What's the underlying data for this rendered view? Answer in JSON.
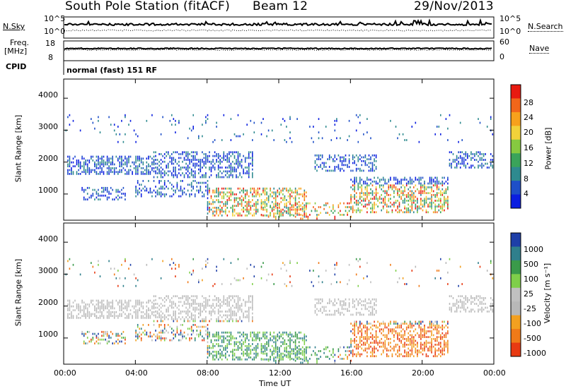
{
  "header": {
    "station": "South Pole Station (fitACF)",
    "beam": "Beam 12",
    "date": "29/Nov/2013"
  },
  "strips": {
    "nsky_label": "N.Sky",
    "nsky_ticks": [
      "10^5",
      "10^0"
    ],
    "nsearch_label": "N.Search",
    "nsearch_ticks": [
      "10^5",
      "10^0"
    ],
    "freq_label_1": "Freq.",
    "freq_label_2": "[MHz]",
    "freq_ticks": [
      "18",
      "8"
    ],
    "nave_label": "Nave",
    "nave_ticks": [
      "60",
      "0"
    ],
    "cpid_label": "CPID",
    "cpid_value": "normal (fast) 151 RF"
  },
  "colors": {
    "power_scale": [
      "#0b1ee0",
      "#1e4fc8",
      "#2e8a8f",
      "#3aa35a",
      "#86c940",
      "#f2d23a",
      "#f7a11c",
      "#f2661a",
      "#e81a10"
    ],
    "velocity_scale": [
      "#1e3fa8",
      "#2f7f8c",
      "#3a9a4a",
      "#7fcf4a",
      "#c0c0c0",
      "#b8b8b8",
      "#f2a020",
      "#f07a18",
      "#e83a12"
    ]
  },
  "chart_data": [
    {
      "type": "heatmap",
      "panel": "power",
      "ylabel": "Slant Range [km]",
      "ylim": [
        180,
        4600
      ],
      "yticks": [
        "1000",
        "2000",
        "3000",
        "4000"
      ],
      "xlim": [
        0,
        24
      ],
      "xticks": [
        "00:00",
        "04:00",
        "08:00",
        "12:00",
        "16:00",
        "20:00",
        "00:00"
      ],
      "colorbar_label": "Power [dB]",
      "colorbar_ticks": [
        "28",
        "24",
        "20",
        "16",
        "12",
        "8",
        "4"
      ]
    },
    {
      "type": "heatmap",
      "panel": "velocity",
      "ylabel": "Slant Range [km]",
      "ylim": [
        180,
        4600
      ],
      "yticks": [
        "1000",
        "2000",
        "3000",
        "4000"
      ],
      "xlim": [
        0,
        24
      ],
      "xticks": [
        "00:00",
        "04:00",
        "08:00",
        "12:00",
        "16:00",
        "20:00",
        "00:00"
      ],
      "xlabel": "Time UT",
      "colorbar_label": "Velocity [m s⁻¹]",
      "colorbar_ticks": [
        "1000",
        "500",
        "100",
        "25",
        "-25",
        "-100",
        "-500",
        "-1000"
      ]
    }
  ]
}
